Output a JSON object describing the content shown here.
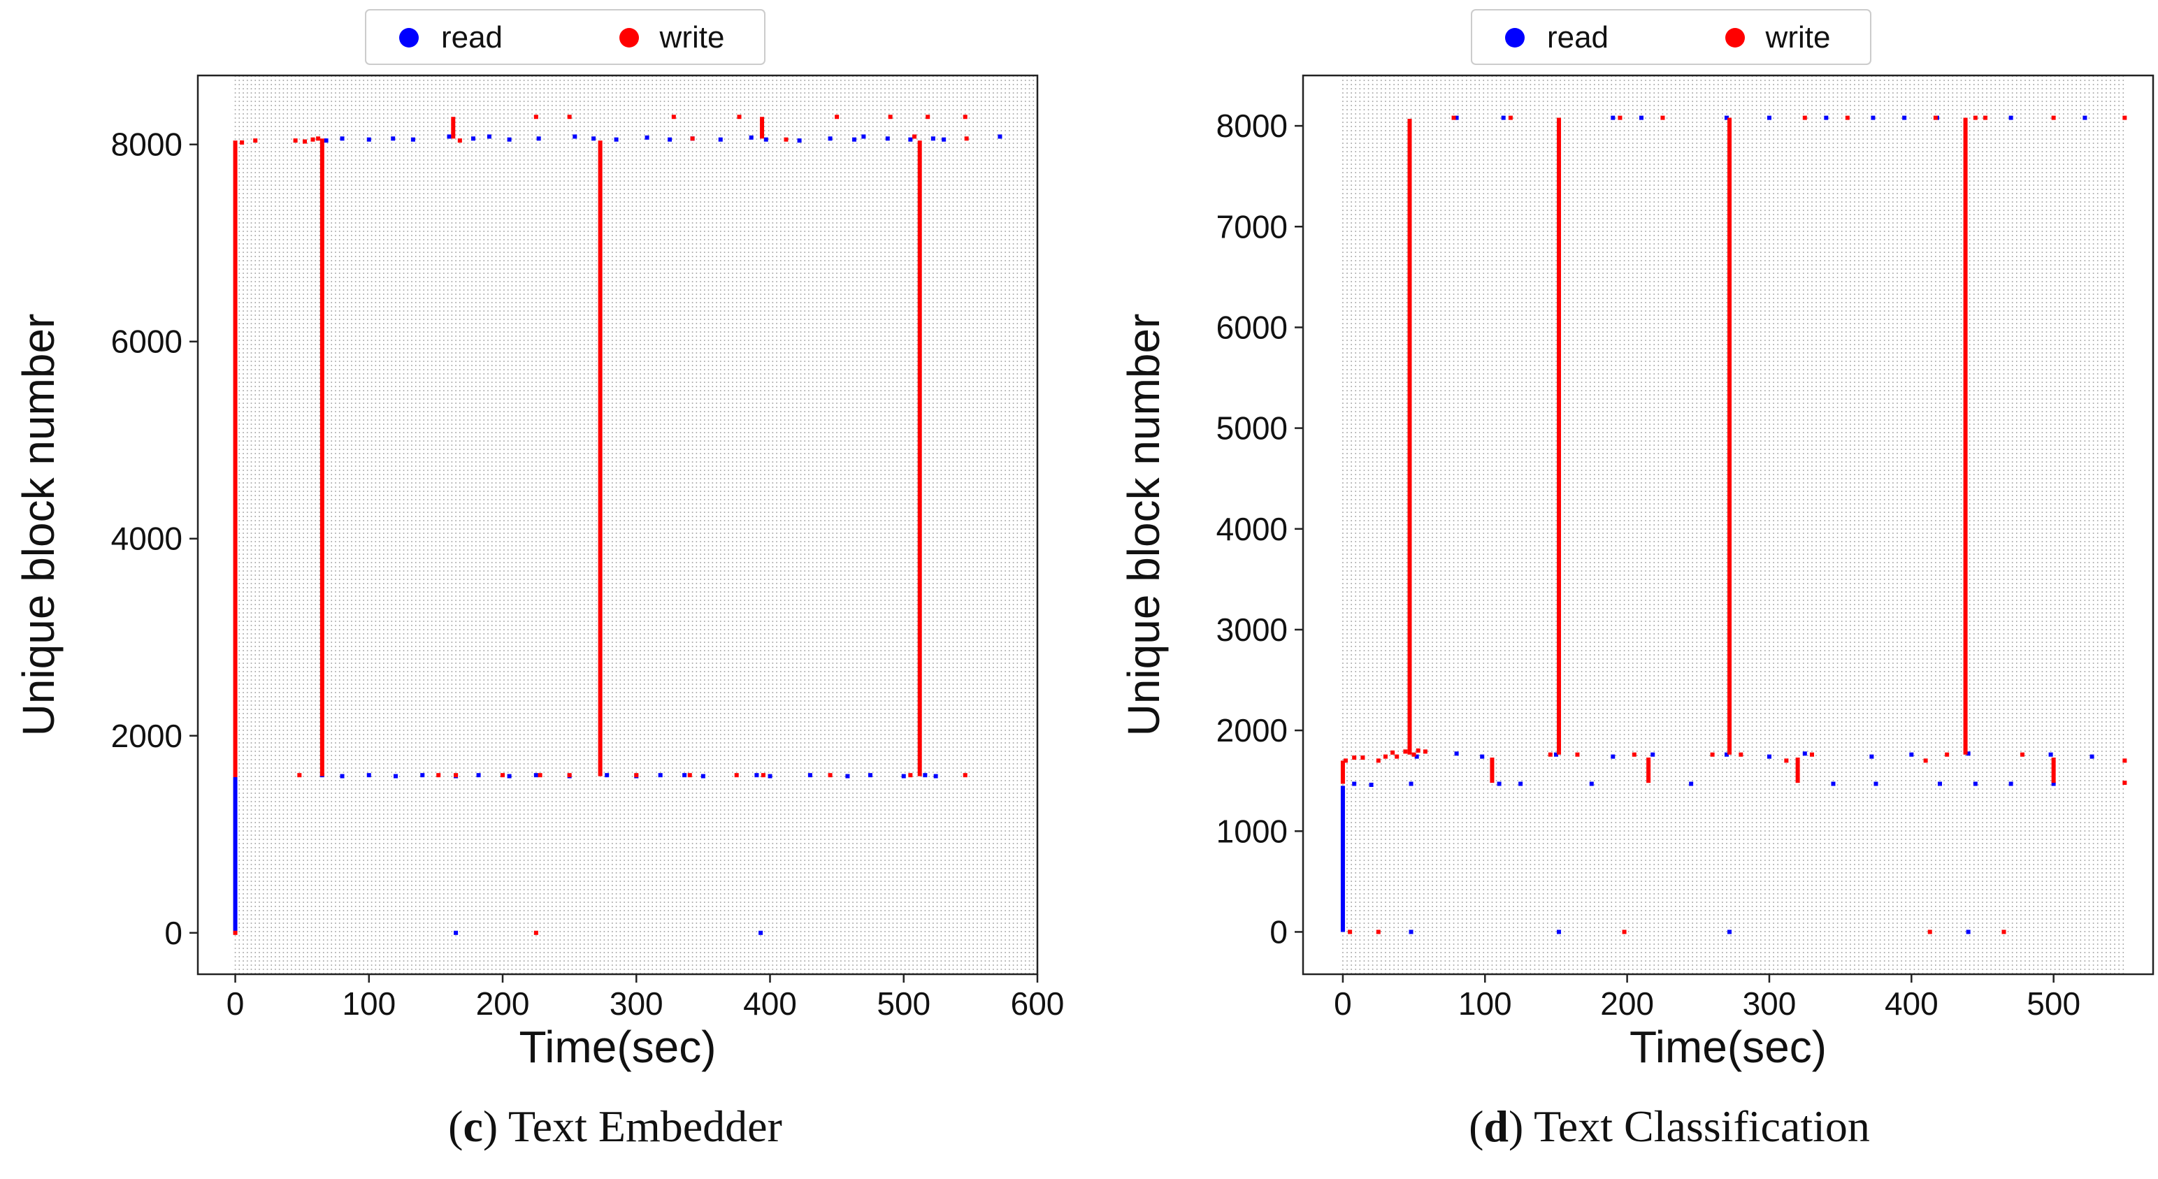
{
  "colors": {
    "read": "#0000ff",
    "write": "#ff0000",
    "grid": "#b0b0b0",
    "axis": "#222222"
  },
  "chart_data": [
    {
      "type": "scatter",
      "panel_letter": "c",
      "caption": "Text Embedder",
      "xlabel": "Time(sec)",
      "ylabel": "Unique block number",
      "xlim": [
        -28,
        600
      ],
      "ylim": [
        -420,
        8700
      ],
      "xticks": [
        0,
        100,
        200,
        300,
        400,
        500,
        600
      ],
      "yticks": [
        0,
        2000,
        4000,
        6000,
        8000
      ],
      "grid_step": 3,
      "grid_end": 600,
      "legend": [
        "read",
        "write"
      ],
      "legend_position": "top-center",
      "series": [
        {
          "name": "read",
          "segments": [
            [
              0,
              0,
              1580
            ]
          ],
          "points": [
            [
              68,
              8040
            ],
            [
              80,
              8060
            ],
            [
              100,
              8050
            ],
            [
              118,
              8060
            ],
            [
              133,
              8050
            ],
            [
              160,
              8080
            ],
            [
              178,
              8060
            ],
            [
              190,
              8080
            ],
            [
              205,
              8050
            ],
            [
              227,
              8060
            ],
            [
              254,
              8080
            ],
            [
              268,
              8060
            ],
            [
              285,
              8050
            ],
            [
              308,
              8070
            ],
            [
              325,
              8050
            ],
            [
              342,
              8060
            ],
            [
              363,
              8050
            ],
            [
              386,
              8070
            ],
            [
              397,
              8050
            ],
            [
              422,
              8040
            ],
            [
              445,
              8060
            ],
            [
              463,
              8050
            ],
            [
              470,
              8080
            ],
            [
              488,
              8060
            ],
            [
              505,
              8050
            ],
            [
              522,
              8060
            ],
            [
              530,
              8050
            ],
            [
              572,
              8080
            ],
            [
              65,
              1600
            ],
            [
              80,
              1590
            ],
            [
              100,
              1600
            ],
            [
              120,
              1590
            ],
            [
              140,
              1600
            ],
            [
              165,
              1590
            ],
            [
              182,
              1600
            ],
            [
              205,
              1590
            ],
            [
              225,
              1600
            ],
            [
              250,
              1590
            ],
            [
              278,
              1600
            ],
            [
              300,
              1590
            ],
            [
              318,
              1600
            ],
            [
              336,
              1600
            ],
            [
              350,
              1590
            ],
            [
              390,
              1600
            ],
            [
              400,
              1590
            ],
            [
              430,
              1600
            ],
            [
              458,
              1590
            ],
            [
              475,
              1600
            ],
            [
              500,
              1590
            ],
            [
              516,
              1600
            ],
            [
              524,
              1590
            ],
            [
              165,
              0
            ],
            [
              393,
              0
            ]
          ]
        },
        {
          "name": "write",
          "segments": [
            [
              0,
              1580,
              8040
            ],
            [
              65,
              1590,
              8060
            ],
            [
              273,
              1590,
              8040
            ],
            [
              512,
              1590,
              8040
            ],
            [
              163,
              8060,
              8280
            ],
            [
              394,
              8060,
              8280
            ]
          ],
          "points": [
            [
              0,
              0
            ],
            [
              5,
              8020
            ],
            [
              15,
              8040
            ],
            [
              45,
              8040
            ],
            [
              52,
              8030
            ],
            [
              58,
              8050
            ],
            [
              62,
              8060
            ],
            [
              168,
              8040
            ],
            [
              225,
              8280
            ],
            [
              250,
              8280
            ],
            [
              328,
              8280
            ],
            [
              377,
              8280
            ],
            [
              450,
              8280
            ],
            [
              490,
              8280
            ],
            [
              518,
              8280
            ],
            [
              546,
              8280
            ],
            [
              342,
              8060
            ],
            [
              412,
              8050
            ],
            [
              508,
              8080
            ],
            [
              547,
              8060
            ],
            [
              48,
              1600
            ],
            [
              152,
              1600
            ],
            [
              165,
              1600
            ],
            [
              200,
              1600
            ],
            [
              228,
              1600
            ],
            [
              250,
              1600
            ],
            [
              300,
              1600
            ],
            [
              340,
              1600
            ],
            [
              375,
              1600
            ],
            [
              395,
              1600
            ],
            [
              445,
              1600
            ],
            [
              505,
              1600
            ],
            [
              546,
              1600
            ],
            [
              225,
              0
            ]
          ]
        }
      ]
    },
    {
      "type": "scatter",
      "panel_letter": "d",
      "caption": "Text Classification",
      "xlabel": "Time(sec)",
      "ylabel": "Unique block number",
      "xlim": [
        -28,
        570
      ],
      "ylim": [
        -420,
        8500
      ],
      "xticks": [
        0,
        100,
        200,
        300,
        400,
        500
      ],
      "yticks": [
        0,
        1000,
        2000,
        3000,
        4000,
        5000,
        6000,
        7000,
        8000
      ],
      "grid_step": 3,
      "grid_end": 550,
      "legend": [
        "read",
        "write"
      ],
      "legend_position": "top-center",
      "series": [
        {
          "name": "read",
          "segments": [
            [
              0,
              0,
              1450
            ]
          ],
          "points": [
            [
              80,
              8080
            ],
            [
              113,
              8080
            ],
            [
              190,
              8080
            ],
            [
              210,
              8080
            ],
            [
              270,
              8080
            ],
            [
              300,
              8080
            ],
            [
              340,
              8080
            ],
            [
              373,
              8080
            ],
            [
              395,
              8080
            ],
            [
              418,
              8080
            ],
            [
              470,
              8080
            ],
            [
              522,
              8080
            ],
            [
              8,
              1470
            ],
            [
              20,
              1460
            ],
            [
              48,
              1470
            ],
            [
              52,
              1740
            ],
            [
              80,
              1770
            ],
            [
              98,
              1740
            ],
            [
              110,
              1470
            ],
            [
              125,
              1470
            ],
            [
              150,
              1760
            ],
            [
              175,
              1470
            ],
            [
              190,
              1740
            ],
            [
              218,
              1760
            ],
            [
              245,
              1470
            ],
            [
              270,
              1760
            ],
            [
              300,
              1740
            ],
            [
              325,
              1770
            ],
            [
              345,
              1470
            ],
            [
              372,
              1740
            ],
            [
              375,
              1470
            ],
            [
              400,
              1760
            ],
            [
              420,
              1470
            ],
            [
              440,
              1770
            ],
            [
              445,
              1470
            ],
            [
              470,
              1470
            ],
            [
              498,
              1760
            ],
            [
              500,
              1470
            ],
            [
              527,
              1740
            ],
            [
              48,
              0
            ],
            [
              152,
              0
            ],
            [
              272,
              0
            ],
            [
              440,
              0
            ]
          ]
        },
        {
          "name": "write",
          "segments": [
            [
              0,
              1470,
              1700
            ],
            [
              47,
              1760,
              8070
            ],
            [
              152,
              1760,
              8080
            ],
            [
              272,
              1760,
              8080
            ],
            [
              438,
              1760,
              8080
            ],
            [
              105,
              1480,
              1730
            ],
            [
              215,
              1480,
              1730
            ],
            [
              320,
              1480,
              1730
            ],
            [
              500,
              1480,
              1730
            ]
          ],
          "points": [
            [
              2,
              1700
            ],
            [
              8,
              1730
            ],
            [
              14,
              1730
            ],
            [
              25,
              1700
            ],
            [
              30,
              1740
            ],
            [
              35,
              1780
            ],
            [
              38,
              1740
            ],
            [
              44,
              1790
            ],
            [
              50,
              1760
            ],
            [
              53,
              1800
            ],
            [
              58,
              1790
            ],
            [
              78,
              8080
            ],
            [
              146,
              1760
            ],
            [
              165,
              1760
            ],
            [
              195,
              8080
            ],
            [
              205,
              1760
            ],
            [
              225,
              8080
            ],
            [
              260,
              1760
            ],
            [
              280,
              1760
            ],
            [
              312,
              1700
            ],
            [
              330,
              1760
            ],
            [
              410,
              1700
            ],
            [
              425,
              1760
            ],
            [
              452,
              8080
            ],
            [
              478,
              1760
            ],
            [
              500,
              8080
            ],
            [
              550,
              1700
            ],
            [
              550,
              1480
            ],
            [
              118,
              8080
            ],
            [
              325,
              8080
            ],
            [
              355,
              8080
            ],
            [
              417,
              8080
            ],
            [
              445,
              8080
            ],
            [
              550,
              8080
            ],
            [
              5,
              0
            ],
            [
              25,
              0
            ],
            [
              198,
              0
            ],
            [
              413,
              0
            ],
            [
              465,
              0
            ]
          ]
        }
      ]
    }
  ]
}
